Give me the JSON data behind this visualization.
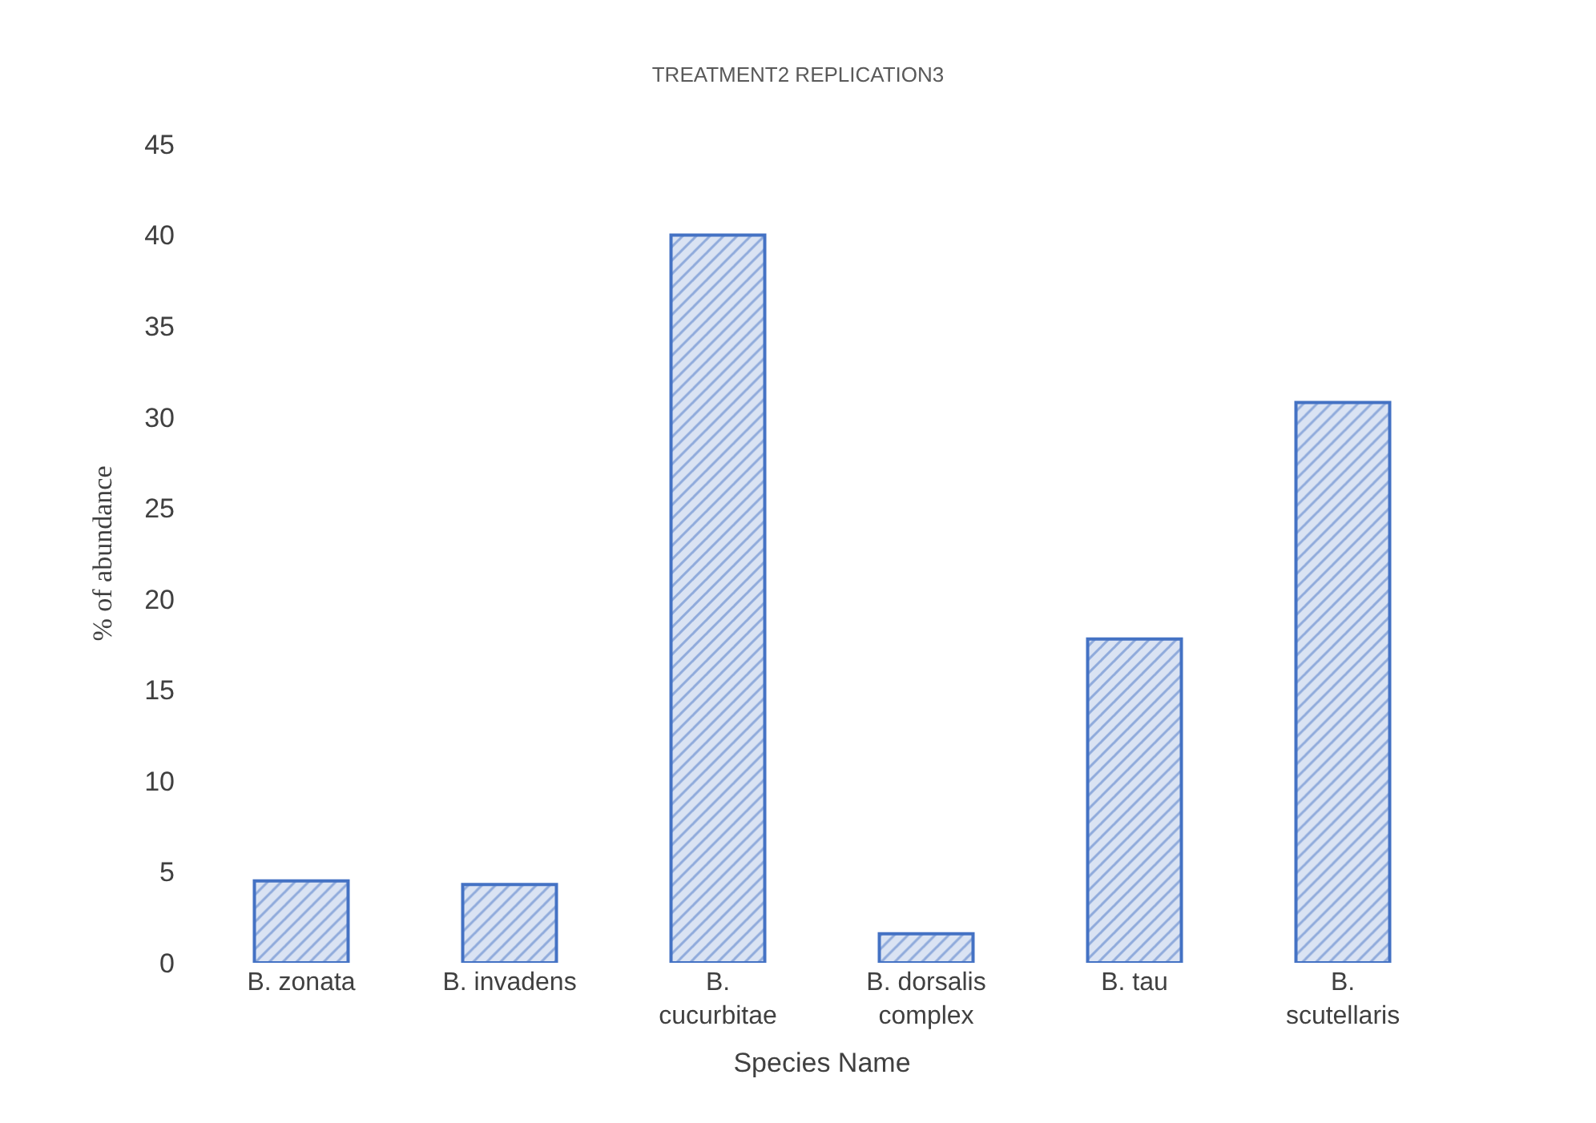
{
  "chart_data": {
    "type": "bar",
    "title": "TREATMENT2 REPLICATION3",
    "xlabel": "Species Name",
    "ylabel": "% of abundance",
    "categories": [
      "B. zonata",
      "B. invadens",
      "B. cucurbitae",
      "B. dorsalis complex",
      "B. tau",
      "B. scutellaris"
    ],
    "values": [
      4.5,
      4.3,
      40.0,
      1.6,
      17.8,
      30.8
    ],
    "color": "#4472c4",
    "ylim": [
      0,
      45
    ],
    "yticks": [
      0,
      5,
      10,
      15,
      20,
      25,
      30,
      35,
      40,
      45
    ]
  }
}
